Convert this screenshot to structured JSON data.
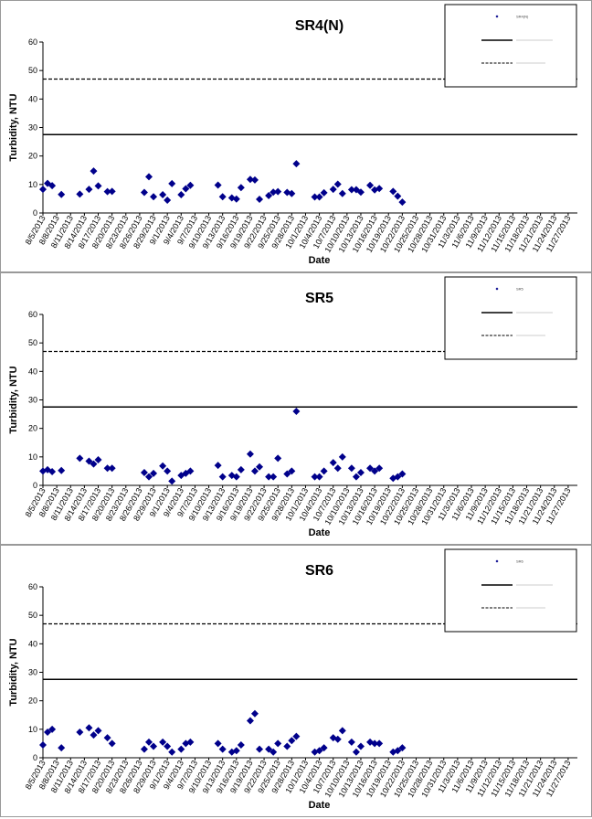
{
  "chart_data": [
    {
      "type": "scatter",
      "title": "SR4(N)",
      "xlabel": "Date",
      "ylabel": "Turbidity, NTU",
      "ylim": [
        0,
        60
      ],
      "yticks": [
        0,
        10,
        20,
        30,
        40,
        50,
        60
      ],
      "grid": false,
      "legend_position": "top-right",
      "x_tick_labels": [
        "8/5/2013",
        "8/8/2013",
        "8/11/2013",
        "8/14/2013",
        "8/17/2013",
        "8/20/2013",
        "8/23/2013",
        "8/26/2013",
        "8/29/2013",
        "9/1/2013",
        "9/4/2013",
        "9/7/2013",
        "9/10/2013",
        "9/13/2013",
        "9/16/2013",
        "9/19/2013",
        "9/22/2013",
        "9/25/2013",
        "9/28/2013",
        "10/1/2013",
        "10/4/2013",
        "10/7/2013",
        "10/10/2013",
        "10/13/2013",
        "10/16/2013",
        "10/19/2013",
        "10/22/2013",
        "10/25/2013",
        "10/28/2013",
        "10/31/2013",
        "11/3/2013",
        "11/6/2013",
        "11/9/2013",
        "11/12/2013",
        "11/15/2013",
        "11/18/2013",
        "11/21/2013",
        "11/24/2013",
        "11/27/2013"
      ],
      "x_range": [
        "8/5/2013",
        "11/29/2013"
      ],
      "reference_lines": [
        {
          "value": 27.5,
          "style": "solid",
          "color": "#000000"
        },
        {
          "value": 47,
          "style": "dashed",
          "color": "#000000"
        }
      ],
      "series": [
        {
          "name": "SR4(N)",
          "marker": "diamond",
          "color": "#00008b",
          "points": [
            [
              "8/5/2013",
              8.3
            ],
            [
              "8/6/2013",
              10.4
            ],
            [
              "8/7/2013",
              9.6
            ],
            [
              "8/9/2013",
              6.5
            ],
            [
              "8/13/2013",
              6.6
            ],
            [
              "8/15/2013",
              8.3
            ],
            [
              "8/16/2013",
              14.7
            ],
            [
              "8/17/2013",
              9.5
            ],
            [
              "8/19/2013",
              7.5
            ],
            [
              "8/20/2013",
              7.6
            ],
            [
              "8/27/2013",
              7.2
            ],
            [
              "8/28/2013",
              12.7
            ],
            [
              "8/29/2013",
              5.7
            ],
            [
              "8/31/2013",
              6.4
            ],
            [
              "9/1/2013",
              4.5
            ],
            [
              "9/2/2013",
              10.3
            ],
            [
              "9/4/2013",
              6.4
            ],
            [
              "9/5/2013",
              8.5
            ],
            [
              "9/6/2013",
              9.7
            ],
            [
              "9/12/2013",
              9.8
            ],
            [
              "9/13/2013",
              5.7
            ],
            [
              "9/15/2013",
              5.3
            ],
            [
              "9/16/2013",
              4.9
            ],
            [
              "9/17/2013",
              8.9
            ],
            [
              "9/19/2013",
              11.8
            ],
            [
              "9/20/2013",
              11.6
            ],
            [
              "9/21/2013",
              4.8
            ],
            [
              "9/23/2013",
              6.1
            ],
            [
              "9/24/2013",
              7.3
            ],
            [
              "9/25/2013",
              7.5
            ],
            [
              "9/27/2013",
              7.2
            ],
            [
              "9/28/2013",
              6.8
            ],
            [
              "9/29/2013",
              17.3
            ],
            [
              "10/3/2013",
              5.6
            ],
            [
              "10/4/2013",
              5.6
            ],
            [
              "10/5/2013",
              7.1
            ],
            [
              "10/7/2013",
              8.3
            ],
            [
              "10/8/2013",
              10.1
            ],
            [
              "10/9/2013",
              6.8
            ],
            [
              "10/11/2013",
              8.2
            ],
            [
              "10/12/2013",
              8.2
            ],
            [
              "10/13/2013",
              7.3
            ],
            [
              "10/15/2013",
              9.7
            ],
            [
              "10/16/2013",
              8.1
            ],
            [
              "10/17/2013",
              8.6
            ],
            [
              "10/20/2013",
              7.6
            ],
            [
              "10/21/2013",
              5.9
            ],
            [
              "10/22/2013",
              3.8
            ]
          ]
        }
      ]
    },
    {
      "type": "scatter",
      "title": "SR5",
      "xlabel": "Date",
      "ylabel": "Turbidity, NTU",
      "ylim": [
        0,
        60
      ],
      "yticks": [
        0,
        10,
        20,
        30,
        40,
        50,
        60
      ],
      "grid": false,
      "legend_position": "top-right",
      "x_tick_labels": [
        "8/5/2013",
        "8/8/2013",
        "8/11/2013",
        "8/14/2013",
        "8/17/2013",
        "8/20/2013",
        "8/23/2013",
        "8/26/2013",
        "8/29/2013",
        "9/1/2013",
        "9/4/2013",
        "9/7/2013",
        "9/10/2013",
        "9/13/2013",
        "9/16/2013",
        "9/19/2013",
        "9/22/2013",
        "9/25/2013",
        "9/28/2013",
        "10/1/2013",
        "10/4/2013",
        "10/7/2013",
        "10/10/2013",
        "10/13/2013",
        "10/16/2013",
        "10/19/2013",
        "10/22/2013",
        "10/25/2013",
        "10/28/2013",
        "10/31/2013",
        "11/3/2013",
        "11/6/2013",
        "11/9/2013",
        "11/12/2013",
        "11/15/2013",
        "11/18/2013",
        "11/21/2013",
        "11/24/2013",
        "11/27/2013"
      ],
      "x_range": [
        "8/5/2013",
        "11/29/2013"
      ],
      "reference_lines": [
        {
          "value": 27.5,
          "style": "solid",
          "color": "#000000"
        },
        {
          "value": 47,
          "style": "dashed",
          "color": "#000000"
        }
      ],
      "series": [
        {
          "name": "SR5",
          "marker": "diamond",
          "color": "#00008b",
          "points": [
            [
              "8/5/2013",
              5.0
            ],
            [
              "8/6/2013",
              5.5
            ],
            [
              "8/7/2013",
              4.8
            ],
            [
              "8/9/2013",
              5.2
            ],
            [
              "8/13/2013",
              9.5
            ],
            [
              "8/15/2013",
              8.5
            ],
            [
              "8/16/2013",
              7.5
            ],
            [
              "8/17/2013",
              9.0
            ],
            [
              "8/19/2013",
              6.0
            ],
            [
              "8/20/2013",
              6.0
            ],
            [
              "8/27/2013",
              4.5
            ],
            [
              "8/28/2013",
              3.0
            ],
            [
              "8/29/2013",
              4.2
            ],
            [
              "8/31/2013",
              6.8
            ],
            [
              "9/1/2013",
              5.0
            ],
            [
              "9/2/2013",
              1.5
            ],
            [
              "9/4/2013",
              3.5
            ],
            [
              "9/5/2013",
              4.2
            ],
            [
              "9/6/2013",
              5.0
            ],
            [
              "9/12/2013",
              7.0
            ],
            [
              "9/13/2013",
              3.0
            ],
            [
              "9/15/2013",
              3.5
            ],
            [
              "9/16/2013",
              3.0
            ],
            [
              "9/17/2013",
              5.5
            ],
            [
              "9/19/2013",
              11.0
            ],
            [
              "9/20/2013",
              5.0
            ],
            [
              "9/21/2013",
              6.5
            ],
            [
              "9/23/2013",
              3.0
            ],
            [
              "9/24/2013",
              3.0
            ],
            [
              "9/25/2013",
              9.5
            ],
            [
              "9/27/2013",
              4.0
            ],
            [
              "9/28/2013",
              5.0
            ],
            [
              "9/29/2013",
              26.0
            ],
            [
              "10/3/2013",
              3.0
            ],
            [
              "10/4/2013",
              3.0
            ],
            [
              "10/5/2013",
              5.0
            ],
            [
              "10/7/2013",
              8.0
            ],
            [
              "10/8/2013",
              6.0
            ],
            [
              "10/9/2013",
              10.0
            ],
            [
              "10/11/2013",
              6.0
            ],
            [
              "10/12/2013",
              3.0
            ],
            [
              "10/13/2013",
              4.5
            ],
            [
              "10/15/2013",
              6.0
            ],
            [
              "10/16/2013",
              5.0
            ],
            [
              "10/17/2013",
              6.0
            ],
            [
              "10/20/2013",
              2.5
            ],
            [
              "10/21/2013",
              3.0
            ],
            [
              "10/22/2013",
              4.0
            ]
          ]
        }
      ]
    },
    {
      "type": "scatter",
      "title": "SR6",
      "xlabel": "Date",
      "ylabel": "Turbidity, NTU",
      "ylim": [
        0,
        60
      ],
      "yticks": [
        0,
        10,
        20,
        30,
        40,
        50,
        60
      ],
      "grid": false,
      "legend_position": "top-right",
      "x_tick_labels": [
        "8/5/2013",
        "8/8/2013",
        "8/11/2013",
        "8/14/2013",
        "8/17/2013",
        "8/20/2013",
        "8/23/2013",
        "8/26/2013",
        "8/29/2013",
        "9/1/2013",
        "9/4/2013",
        "9/7/2013",
        "9/10/2013",
        "9/13/2013",
        "9/16/2013",
        "9/19/2013",
        "9/22/2013",
        "9/25/2013",
        "9/28/2013",
        "10/1/2013",
        "10/4/2013",
        "10/7/2013",
        "10/10/2013",
        "10/13/2013",
        "10/16/2013",
        "10/19/2013",
        "10/22/2013",
        "10/25/2013",
        "10/28/2013",
        "10/31/2013",
        "11/3/2013",
        "11/6/2013",
        "11/9/2013",
        "11/12/2013",
        "11/15/2013",
        "11/18/2013",
        "11/21/2013",
        "11/24/2013",
        "11/27/2013"
      ],
      "x_range": [
        "8/5/2013",
        "11/29/2013"
      ],
      "reference_lines": [
        {
          "value": 27.5,
          "style": "solid",
          "color": "#000000"
        },
        {
          "value": 47,
          "style": "dashed",
          "color": "#000000"
        }
      ],
      "series": [
        {
          "name": "SR6",
          "marker": "diamond",
          "color": "#00008b",
          "points": [
            [
              "8/5/2013",
              4.5
            ],
            [
              "8/6/2013",
              9.0
            ],
            [
              "8/7/2013",
              10.0
            ],
            [
              "8/9/2013",
              3.5
            ],
            [
              "8/13/2013",
              9.0
            ],
            [
              "8/15/2013",
              10.5
            ],
            [
              "8/16/2013",
              8.0
            ],
            [
              "8/17/2013",
              9.5
            ],
            [
              "8/19/2013",
              7.0
            ],
            [
              "8/20/2013",
              5.0
            ],
            [
              "8/27/2013",
              3.0
            ],
            [
              "8/28/2013",
              5.5
            ],
            [
              "8/29/2013",
              4.0
            ],
            [
              "8/31/2013",
              5.5
            ],
            [
              "9/1/2013",
              4.0
            ],
            [
              "9/2/2013",
              2.0
            ],
            [
              "9/4/2013",
              3.0
            ],
            [
              "9/5/2013",
              5.0
            ],
            [
              "9/6/2013",
              5.5
            ],
            [
              "9/12/2013",
              5.0
            ],
            [
              "9/13/2013",
              3.0
            ],
            [
              "9/15/2013",
              2.0
            ],
            [
              "9/16/2013",
              2.5
            ],
            [
              "9/17/2013",
              4.5
            ],
            [
              "9/19/2013",
              13.0
            ],
            [
              "9/20/2013",
              15.5
            ],
            [
              "9/21/2013",
              3.0
            ],
            [
              "9/23/2013",
              3.0
            ],
            [
              "9/24/2013",
              2.0
            ],
            [
              "9/25/2013",
              5.0
            ],
            [
              "9/27/2013",
              4.0
            ],
            [
              "9/28/2013",
              6.0
            ],
            [
              "9/29/2013",
              7.5
            ],
            [
              "10/3/2013",
              2.0
            ],
            [
              "10/4/2013",
              2.5
            ],
            [
              "10/5/2013",
              3.5
            ],
            [
              "10/7/2013",
              7.0
            ],
            [
              "10/8/2013",
              6.5
            ],
            [
              "10/9/2013",
              9.5
            ],
            [
              "10/11/2013",
              5.5
            ],
            [
              "10/12/2013",
              2.0
            ],
            [
              "10/13/2013",
              4.0
            ],
            [
              "10/15/2013",
              5.5
            ],
            [
              "10/16/2013",
              5.0
            ],
            [
              "10/17/2013",
              5.0
            ],
            [
              "10/20/2013",
              2.0
            ],
            [
              "10/21/2013",
              2.5
            ],
            [
              "10/22/2013",
              3.5
            ]
          ]
        }
      ]
    }
  ]
}
